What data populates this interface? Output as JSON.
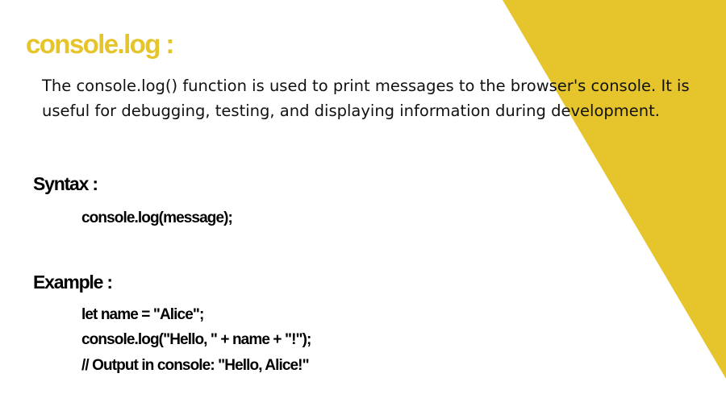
{
  "colors": {
    "accent": "#e6c42c",
    "background": "#ffffff",
    "text": "#000000"
  },
  "title": "console.log :",
  "description": "The console.log() function is used to print messages to the browser's console. It is useful for debugging, testing, and displaying information during development.",
  "syntax": {
    "heading": "Syntax :",
    "code": "console.log(message);"
  },
  "example": {
    "heading": "Example :",
    "lines": [
      "let name = \"Alice\";",
      "console.log(\"Hello, \" + name + \"!\");",
      "// Output in console: \"Hello, Alice!\""
    ]
  }
}
